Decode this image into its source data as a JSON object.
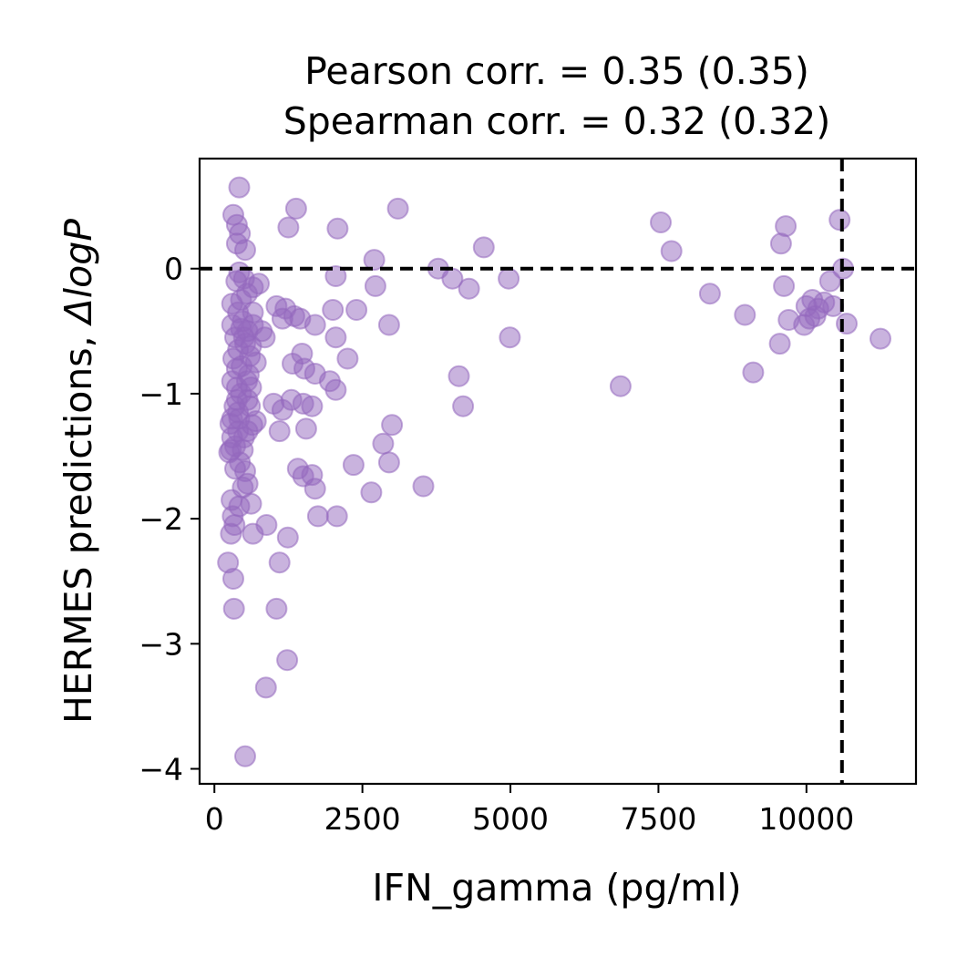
{
  "chart_data": {
    "type": "scatter",
    "title_lines": [
      "Pearson corr. = 0.35 (0.35)",
      "Spearman corr. = 0.32 (0.32)"
    ],
    "xlabel": "IFN_gamma (pg/ml)",
    "ylabel_main": "HERMES predictions, ",
    "ylabel_math": "ΔlogP",
    "xlim": [
      -250,
      11850
    ],
    "ylim": [
      -4.12,
      0.88
    ],
    "xticks": [
      0,
      2500,
      5000,
      7500,
      10000
    ],
    "xtick_labels": [
      "0",
      "2500",
      "5000",
      "7500",
      "10000"
    ],
    "yticks": [
      0,
      -1,
      -2,
      -3,
      -4
    ],
    "ytick_labels": [
      "0",
      "−1",
      "−2",
      "−3",
      "−4"
    ],
    "hline_y": 0,
    "vline_x": 10600,
    "point_color": "#9467bd",
    "grid": false,
    "points": [
      [
        420,
        0.65
      ],
      [
        320,
        0.43
      ],
      [
        380,
        0.35
      ],
      [
        430,
        0.28
      ],
      [
        380,
        0.2
      ],
      [
        520,
        0.15
      ],
      [
        1380,
        0.48
      ],
      [
        1250,
        0.33
      ],
      [
        2080,
        0.32
      ],
      [
        3100,
        0.48
      ],
      [
        4550,
        0.17
      ],
      [
        2700,
        0.07
      ],
      [
        2050,
        -0.06
      ],
      [
        3780,
        0.0
      ],
      [
        4020,
        -0.08
      ],
      [
        4300,
        -0.16
      ],
      [
        4970,
        -0.08
      ],
      [
        2720,
        -0.14
      ],
      [
        1050,
        -0.3
      ],
      [
        1200,
        -0.32
      ],
      [
        1350,
        -0.38
      ],
      [
        1150,
        -0.4
      ],
      [
        1450,
        -0.4
      ],
      [
        1700,
        -0.45
      ],
      [
        2000,
        -0.33
      ],
      [
        2400,
        -0.33
      ],
      [
        2050,
        -0.55
      ],
      [
        2950,
        -0.45
      ],
      [
        4990,
        -0.55
      ],
      [
        2250,
        -0.72
      ],
      [
        1480,
        -0.68
      ],
      [
        1320,
        -0.76
      ],
      [
        1520,
        -0.8
      ],
      [
        1700,
        -0.84
      ],
      [
        1950,
        -0.9
      ],
      [
        2050,
        -0.97
      ],
      [
        4130,
        -0.86
      ],
      [
        4200,
        -1.1
      ],
      [
        6860,
        -0.94
      ],
      [
        1000,
        -1.08
      ],
      [
        1150,
        -1.13
      ],
      [
        1300,
        -1.05
      ],
      [
        1500,
        -1.08
      ],
      [
        1650,
        -1.1
      ],
      [
        1550,
        -1.28
      ],
      [
        1100,
        -1.3
      ],
      [
        3000,
        -1.25
      ],
      [
        2850,
        -1.4
      ],
      [
        2950,
        -1.55
      ],
      [
        2350,
        -1.57
      ],
      [
        1410,
        -1.6
      ],
      [
        1500,
        -1.66
      ],
      [
        1650,
        -1.65
      ],
      [
        1700,
        -1.76
      ],
      [
        2650,
        -1.79
      ],
      [
        3530,
        -1.74
      ],
      [
        1750,
        -1.98
      ],
      [
        2070,
        -1.98
      ],
      [
        880,
        -2.05
      ],
      [
        1240,
        -2.15
      ],
      [
        1100,
        -2.35
      ],
      [
        1050,
        -2.72
      ],
      [
        1230,
        -3.13
      ],
      [
        870,
        -3.35
      ],
      [
        520,
        -3.9
      ],
      [
        230,
        -2.35
      ],
      [
        320,
        -2.48
      ],
      [
        330,
        -2.72
      ],
      [
        290,
        -1.85
      ],
      [
        280,
        -2.12
      ],
      [
        340,
        -2.05
      ],
      [
        310,
        -1.98
      ],
      [
        420,
        -1.9
      ],
      [
        620,
        -1.88
      ],
      [
        650,
        -2.12
      ],
      [
        560,
        -1.72
      ],
      [
        480,
        -1.75
      ],
      [
        520,
        -1.62
      ],
      [
        430,
        -1.55
      ],
      [
        280,
        -1.45
      ],
      [
        350,
        -1.42
      ],
      [
        400,
        -1.3
      ],
      [
        300,
        -1.2
      ],
      [
        500,
        -1.35
      ],
      [
        560,
        -1.3
      ],
      [
        640,
        -1.25
      ],
      [
        700,
        -1.22
      ],
      [
        380,
        -1.05
      ],
      [
        450,
        -1.0
      ],
      [
        550,
        -0.9
      ],
      [
        300,
        -0.9
      ],
      [
        620,
        -0.95
      ],
      [
        700,
        -0.75
      ],
      [
        600,
        -0.7
      ],
      [
        400,
        -0.65
      ],
      [
        350,
        -0.55
      ],
      [
        450,
        -0.48
      ],
      [
        500,
        -0.55
      ],
      [
        300,
        -0.45
      ],
      [
        650,
        -0.45
      ],
      [
        800,
        -0.5
      ],
      [
        850,
        -0.55
      ],
      [
        400,
        -0.35
      ],
      [
        300,
        -0.28
      ],
      [
        450,
        -0.25
      ],
      [
        550,
        -0.2
      ],
      [
        650,
        -0.15
      ],
      [
        750,
        -0.12
      ],
      [
        500,
        -0.08
      ],
      [
        420,
        -0.03
      ],
      [
        370,
        -0.1
      ],
      [
        650,
        -0.35
      ],
      [
        380,
        -0.8
      ],
      [
        320,
        -0.72
      ],
      [
        460,
        -0.78
      ],
      [
        520,
        -0.6
      ],
      [
        400,
        -1.15
      ],
      [
        600,
        -1.1
      ],
      [
        350,
        -1.6
      ],
      [
        480,
        -1.45
      ],
      [
        420,
        -1.2
      ],
      [
        560,
        -1.05
      ],
      [
        300,
        -1.35
      ],
      [
        250,
        -1.47
      ],
      [
        270,
        -1.24
      ],
      [
        340,
        -1.1
      ],
      [
        380,
        -0.95
      ],
      [
        480,
        -0.42
      ],
      [
        560,
        -0.5
      ],
      [
        620,
        -0.62
      ],
      [
        580,
        -0.85
      ],
      [
        7540,
        0.37
      ],
      [
        7720,
        0.14
      ],
      [
        8370,
        -0.2
      ],
      [
        8960,
        -0.37
      ],
      [
        9100,
        -0.83
      ],
      [
        9550,
        -0.6
      ],
      [
        9570,
        0.2
      ],
      [
        9650,
        0.34
      ],
      [
        9620,
        -0.14
      ],
      [
        9700,
        -0.41
      ],
      [
        9960,
        -0.45
      ],
      [
        10000,
        -0.3
      ],
      [
        10100,
        -0.25
      ],
      [
        10150,
        -0.38
      ],
      [
        10300,
        -0.27
      ],
      [
        10400,
        -0.1
      ],
      [
        10450,
        -0.3
      ],
      [
        10560,
        0.39
      ],
      [
        10620,
        0.0
      ],
      [
        10680,
        -0.44
      ],
      [
        11250,
        -0.56
      ],
      [
        10200,
        -0.32
      ],
      [
        10050,
        -0.4
      ]
    ]
  }
}
